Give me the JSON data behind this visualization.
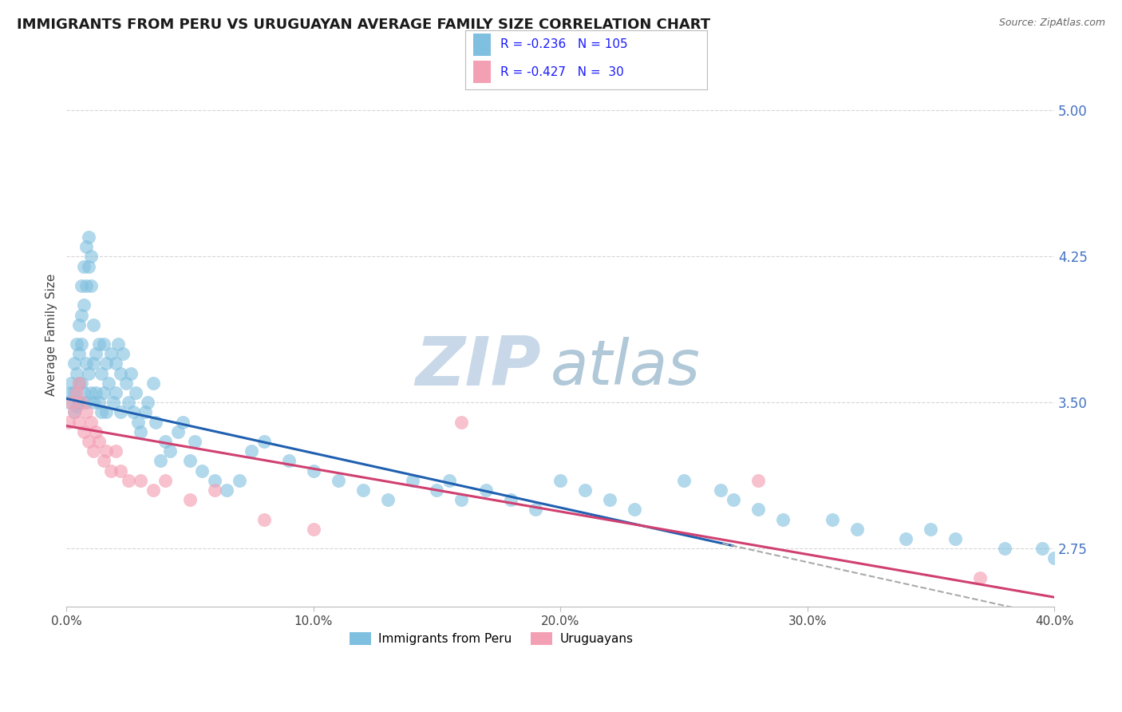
{
  "title": "IMMIGRANTS FROM PERU VS URUGUAYAN AVERAGE FAMILY SIZE CORRELATION CHART",
  "source": "Source: ZipAtlas.com",
  "ylabel": "Average Family Size",
  "xlim": [
    0.0,
    0.4
  ],
  "ylim": [
    2.45,
    5.25
  ],
  "yticks": [
    2.75,
    3.5,
    4.25,
    5.0
  ],
  "xticks": [
    0.0,
    0.1,
    0.2,
    0.3,
    0.4
  ],
  "xticklabels": [
    "0.0%",
    "10.0%",
    "20.0%",
    "30.0%",
    "40.0%"
  ],
  "bottom_legend": [
    "Immigrants from Peru",
    "Uruguayans"
  ],
  "series_blue": {
    "color": "#7fbfdf",
    "trend_color": "#2060b0",
    "trend_end": 0.27
  },
  "series_pink": {
    "color": "#f4a0b4",
    "trend_color": "#d04070"
  },
  "dashed_color": "#aaaaaa",
  "watermark_zip": "ZIP",
  "watermark_atlas": "atlas",
  "watermark_color_zip": "#c8d8e8",
  "watermark_color_atlas": "#b0c8d8",
  "background_color": "#ffffff",
  "grid_color": "#cccccc",
  "title_fontsize": 13,
  "axis_label_fontsize": 11,
  "tick_fontsize": 11,
  "right_tick_color": "#4472c4",
  "legend_R1": "R = -0.236",
  "legend_N1": "N = 105",
  "legend_R2": "R = -0.427",
  "legend_N2": "N =  30",
  "blue_scatter_x": [
    0.001,
    0.002,
    0.002,
    0.003,
    0.003,
    0.003,
    0.004,
    0.004,
    0.004,
    0.005,
    0.005,
    0.005,
    0.005,
    0.006,
    0.006,
    0.006,
    0.006,
    0.007,
    0.007,
    0.007,
    0.008,
    0.008,
    0.008,
    0.008,
    0.009,
    0.009,
    0.009,
    0.01,
    0.01,
    0.01,
    0.011,
    0.011,
    0.011,
    0.012,
    0.012,
    0.013,
    0.013,
    0.014,
    0.014,
    0.015,
    0.015,
    0.016,
    0.016,
    0.017,
    0.018,
    0.019,
    0.02,
    0.02,
    0.021,
    0.022,
    0.022,
    0.023,
    0.024,
    0.025,
    0.026,
    0.027,
    0.028,
    0.029,
    0.03,
    0.032,
    0.033,
    0.035,
    0.036,
    0.038,
    0.04,
    0.042,
    0.045,
    0.047,
    0.05,
    0.052,
    0.055,
    0.06,
    0.065,
    0.07,
    0.075,
    0.08,
    0.09,
    0.1,
    0.11,
    0.12,
    0.13,
    0.14,
    0.15,
    0.155,
    0.16,
    0.17,
    0.18,
    0.19,
    0.2,
    0.21,
    0.22,
    0.23,
    0.25,
    0.265,
    0.27,
    0.28,
    0.29,
    0.31,
    0.32,
    0.34,
    0.35,
    0.36,
    0.38,
    0.395,
    0.4
  ],
  "blue_scatter_y": [
    3.5,
    3.55,
    3.6,
    3.45,
    3.7,
    3.55,
    3.8,
    3.65,
    3.48,
    3.9,
    3.75,
    3.6,
    3.5,
    4.1,
    3.95,
    3.8,
    3.6,
    4.2,
    4.0,
    3.55,
    4.3,
    4.1,
    3.7,
    3.5,
    4.35,
    4.2,
    3.65,
    4.25,
    4.1,
    3.55,
    3.9,
    3.7,
    3.5,
    3.75,
    3.55,
    3.8,
    3.5,
    3.65,
    3.45,
    3.8,
    3.55,
    3.7,
    3.45,
    3.6,
    3.75,
    3.5,
    3.7,
    3.55,
    3.8,
    3.65,
    3.45,
    3.75,
    3.6,
    3.5,
    3.65,
    3.45,
    3.55,
    3.4,
    3.35,
    3.45,
    3.5,
    3.6,
    3.4,
    3.2,
    3.3,
    3.25,
    3.35,
    3.4,
    3.2,
    3.3,
    3.15,
    3.1,
    3.05,
    3.1,
    3.25,
    3.3,
    3.2,
    3.15,
    3.1,
    3.05,
    3.0,
    3.1,
    3.05,
    3.1,
    3.0,
    3.05,
    3.0,
    2.95,
    3.1,
    3.05,
    3.0,
    2.95,
    3.1,
    3.05,
    3.0,
    2.95,
    2.9,
    2.9,
    2.85,
    2.8,
    2.85,
    2.8,
    2.75,
    2.75,
    2.7
  ],
  "pink_scatter_x": [
    0.001,
    0.002,
    0.003,
    0.004,
    0.005,
    0.005,
    0.006,
    0.007,
    0.008,
    0.009,
    0.01,
    0.011,
    0.012,
    0.013,
    0.015,
    0.016,
    0.018,
    0.02,
    0.022,
    0.025,
    0.03,
    0.035,
    0.04,
    0.05,
    0.06,
    0.08,
    0.1,
    0.16,
    0.28,
    0.37
  ],
  "pink_scatter_y": [
    3.4,
    3.5,
    3.45,
    3.55,
    3.6,
    3.4,
    3.5,
    3.35,
    3.45,
    3.3,
    3.4,
    3.25,
    3.35,
    3.3,
    3.2,
    3.25,
    3.15,
    3.25,
    3.15,
    3.1,
    3.1,
    3.05,
    3.1,
    3.0,
    3.05,
    2.9,
    2.85,
    3.4,
    3.1,
    2.6
  ]
}
